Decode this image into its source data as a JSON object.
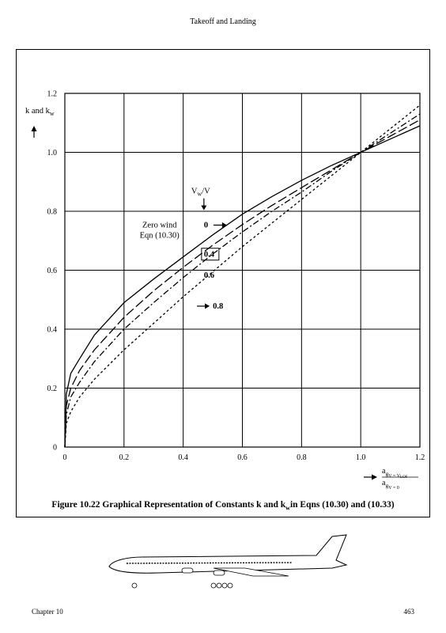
{
  "page": {
    "running_head": "Takeoff and Landing",
    "footer_left": "Chapter 10",
    "footer_right": "463",
    "caption_prefix": "Figure 10.22 Graphical Representation of Constants k and k",
    "caption_sub": "w",
    "caption_suffix": "in Eqns (10.30) and (10.33)"
  },
  "colors": {
    "ink": "#000000",
    "paper": "#ffffff"
  },
  "chart_data": {
    "type": "line",
    "title": "",
    "xlim": [
      0,
      1.2
    ],
    "ylim": [
      0,
      1.2
    ],
    "x_ticks": [
      "0",
      "0.2",
      "0.4",
      "0.6",
      "0.8",
      "1.0",
      "1.2"
    ],
    "y_ticks": [
      "0",
      "0.2",
      "0.4",
      "0.6",
      "0.8",
      "1.0",
      "1.2"
    ],
    "grid": true,
    "ylabel": {
      "main": "k and k",
      "sub": "w"
    },
    "xlabel": {
      "num_main": "a",
      "num_sub": "g",
      "num_subsub": "V = V",
      "num_subsubsub": "LOF",
      "den_main": "a",
      "den_sub": "g",
      "den_subsub": "V = 0"
    },
    "vw_label": {
      "main": "V",
      "sub": "w",
      "suffix": "/V"
    },
    "zero_wind_label": [
      "Zero wind",
      "Eqn (10.30)"
    ],
    "series": [
      {
        "name": "0",
        "style": "solid",
        "points": [
          [
            0,
            0
          ],
          [
            0.005,
            0.18
          ],
          [
            0.02,
            0.25
          ],
          [
            0.05,
            0.3
          ],
          [
            0.1,
            0.38
          ],
          [
            0.2,
            0.49
          ],
          [
            0.3,
            0.57
          ],
          [
            0.4,
            0.645
          ],
          [
            0.5,
            0.72
          ],
          [
            0.6,
            0.79
          ],
          [
            0.7,
            0.85
          ],
          [
            0.8,
            0.905
          ],
          [
            0.9,
            0.955
          ],
          [
            1.0,
            1.0
          ],
          [
            1.1,
            1.045
          ],
          [
            1.2,
            1.09
          ]
        ]
      },
      {
        "name": "0.4",
        "style": "long-dash",
        "points": [
          [
            0,
            0
          ],
          [
            0.005,
            0.14
          ],
          [
            0.02,
            0.2
          ],
          [
            0.05,
            0.26
          ],
          [
            0.1,
            0.33
          ],
          [
            0.2,
            0.44
          ],
          [
            0.3,
            0.53
          ],
          [
            0.4,
            0.61
          ],
          [
            0.5,
            0.685
          ],
          [
            0.6,
            0.755
          ],
          [
            0.7,
            0.82
          ],
          [
            0.8,
            0.88
          ],
          [
            0.9,
            0.94
          ],
          [
            1.0,
            1.0
          ],
          [
            1.1,
            1.055
          ],
          [
            1.2,
            1.11
          ]
        ]
      },
      {
        "name": "0.6",
        "style": "dash-dot",
        "points": [
          [
            0,
            0
          ],
          [
            0.005,
            0.11
          ],
          [
            0.02,
            0.17
          ],
          [
            0.05,
            0.22
          ],
          [
            0.1,
            0.29
          ],
          [
            0.2,
            0.4
          ],
          [
            0.3,
            0.49
          ],
          [
            0.4,
            0.575
          ],
          [
            0.5,
            0.655
          ],
          [
            0.6,
            0.73
          ],
          [
            0.7,
            0.8
          ],
          [
            0.8,
            0.865
          ],
          [
            0.9,
            0.935
          ],
          [
            1.0,
            1.0
          ],
          [
            1.1,
            1.065
          ],
          [
            1.2,
            1.13
          ]
        ]
      },
      {
        "name": "0.8",
        "style": "dotted",
        "points": [
          [
            0,
            0
          ],
          [
            0.005,
            0.08
          ],
          [
            0.02,
            0.12
          ],
          [
            0.05,
            0.17
          ],
          [
            0.1,
            0.23
          ],
          [
            0.2,
            0.33
          ],
          [
            0.3,
            0.42
          ],
          [
            0.4,
            0.51
          ],
          [
            0.5,
            0.595
          ],
          [
            0.6,
            0.68
          ],
          [
            0.7,
            0.76
          ],
          [
            0.8,
            0.84
          ],
          [
            0.9,
            0.92
          ],
          [
            1.0,
            1.0
          ],
          [
            1.1,
            1.08
          ],
          [
            1.2,
            1.16
          ]
        ]
      }
    ],
    "series_labels": [
      {
        "text": "0",
        "x": 0.47,
        "y": 0.745,
        "arrow": "right"
      },
      {
        "text": "0.4",
        "x": 0.47,
        "y": 0.645,
        "boxed": true
      },
      {
        "text": "0.6",
        "x": 0.47,
        "y": 0.575
      },
      {
        "text": "0.8",
        "x": 0.5,
        "y": 0.47,
        "arrow": "left"
      }
    ]
  }
}
